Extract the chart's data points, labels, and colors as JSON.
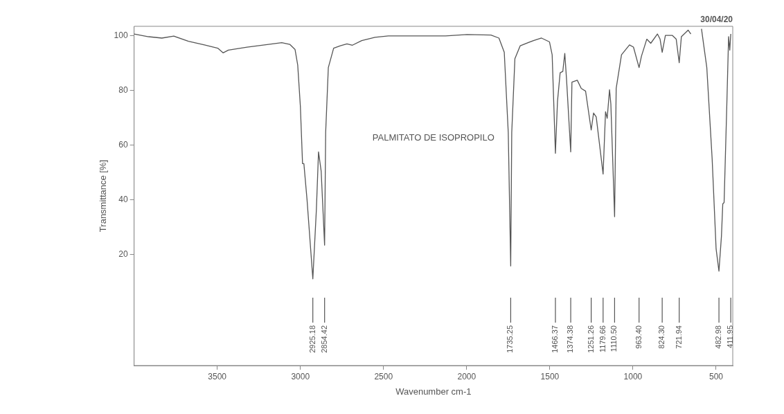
{
  "chart_data": {
    "type": "line",
    "xlabel": "Wavenumber cm-1",
    "ylabel": "Transmittance [%]",
    "xlim": [
      4000,
      400
    ],
    "xticks": [
      3500,
      3000,
      2500,
      2000,
      1500,
      1000,
      500
    ],
    "ylim": [
      -20.5,
      103.5
    ],
    "yticks": [
      20,
      40,
      60,
      80,
      100
    ],
    "grid": false,
    "legend": false,
    "marker": "none",
    "line_style": "solid",
    "annotations": [
      "PALMITATO DE ISOPROPILO",
      "30/04/20",
      {
        "text": "2925.18",
        "x": 2925.18
      },
      {
        "text": "2854.42",
        "x": 2854.42
      },
      {
        "text": "1735.25",
        "x": 1735.25
      },
      {
        "text": "1466.37",
        "x": 1466.37
      },
      {
        "text": "1374.38",
        "x": 1374.38
      },
      {
        "text": "1251.26",
        "x": 1251.26
      },
      {
        "text": "1179.66",
        "x": 1179.66
      },
      {
        "text": "1110.50",
        "x": 1110.5
      },
      {
        "text": "963.40",
        "x": 963.4
      },
      {
        "text": "824.30",
        "x": 824.3
      },
      {
        "text": "721.94",
        "x": 721.94
      },
      {
        "text": "482.98",
        "x": 482.98
      },
      {
        "text": "411.95",
        "x": 411.95
      }
    ],
    "series": [
      {
        "color": "#555555",
        "x": [
          4000,
          3913,
          3833,
          3761,
          3673,
          3577,
          3497,
          3465,
          3433,
          3321,
          3192,
          3112,
          3064,
          3032,
          3016,
          3000,
          2987,
          2979,
          2960,
          2925.18,
          2904,
          2891,
          2875,
          2854.42,
          2848,
          2832,
          2800,
          2760,
          2720,
          2687,
          2631,
          2551,
          2471,
          2287,
          2127,
          1998,
          1854,
          1806,
          1774,
          1750,
          1735.25,
          1729,
          1710,
          1678,
          1598,
          1550,
          1502,
          1486,
          1466.37,
          1454,
          1438,
          1422,
          1410,
          1399,
          1374.38,
          1367,
          1335,
          1311,
          1285,
          1251.26,
          1237,
          1221,
          1179.66,
          1165,
          1155,
          1141,
          1133,
          1110.5,
          1101,
          1069,
          1021,
          997,
          963.4,
          949,
          917,
          893,
          853,
          837,
          824.3,
          805,
          764,
          740,
          721.94,
          709,
          668,
          652,
          620,
          588,
          556,
          524,
          500,
          482.98,
          468,
          460,
          452,
          436,
          425,
          418,
          411.95
        ],
        "values": [
          100.7,
          99.7,
          99.2,
          99.9,
          98.0,
          96.7,
          95.5,
          93.8,
          94.8,
          95.9,
          96.9,
          97.5,
          96.9,
          95.0,
          89.3,
          74.1,
          53.3,
          53.3,
          40.1,
          11.2,
          36.3,
          57.6,
          50.5,
          23.5,
          64.7,
          88.4,
          95.5,
          96.4,
          97.1,
          96.6,
          98.3,
          99.5,
          100,
          100,
          100,
          100.5,
          100.3,
          99.2,
          94,
          64.7,
          15.9,
          64.7,
          91.7,
          96.4,
          98.3,
          99.2,
          97.8,
          93.1,
          57.1,
          76.0,
          86.5,
          87,
          93.6,
          83.6,
          57.6,
          83.1,
          83.8,
          80.8,
          79.8,
          65.6,
          71.8,
          70.4,
          49.5,
          72.3,
          69.9,
          80.3,
          75.1,
          33.9,
          80.8,
          93.1,
          96.7,
          95.9,
          88.4,
          92.6,
          98.8,
          97.3,
          100.7,
          98.8,
          94,
          100.2,
          100.2,
          98.8,
          90.2,
          99.7,
          102.1,
          100.7,
          null,
          102.6,
          88.4,
          55.2,
          22.1,
          14,
          26.8,
          38.6,
          39.1,
          74.1,
          99.7,
          94.8,
          100.7
        ]
      }
    ]
  }
}
